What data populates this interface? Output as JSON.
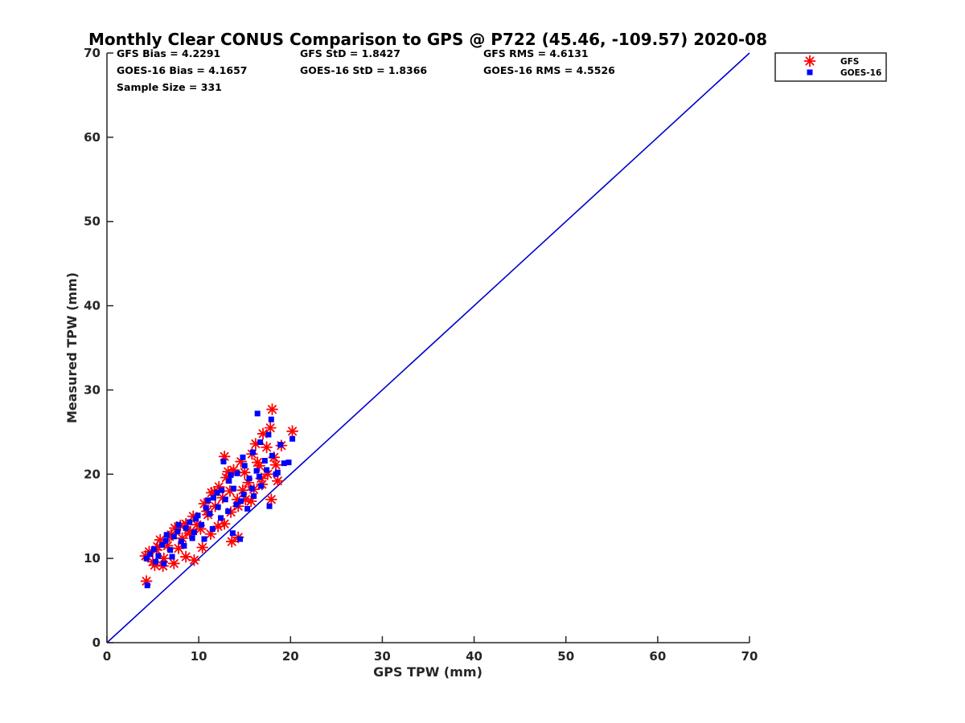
{
  "chart_data": {
    "type": "scatter",
    "title": "Monthly Clear CONUS Comparison to GPS @ P722 (45.46, -109.57) 2020-08",
    "xlabel": "GPS TPW (mm)",
    "ylabel": "Measured TPW (mm)",
    "xlim": [
      0,
      70
    ],
    "ylim": [
      0,
      70
    ],
    "xticks": [
      "0",
      "10",
      "20",
      "30",
      "40",
      "50",
      "60",
      "70"
    ],
    "yticks": [
      "0",
      "10",
      "20",
      "30",
      "40",
      "50",
      "60",
      "70"
    ],
    "grid": false,
    "legend_position": "outside-top-right",
    "stats": [
      "GFS Bias = 4.2291",
      "GFS StD = 1.8427",
      "GFS RMS = 4.6131",
      "GOES-16 Bias = 4.1657",
      "GOES-16 StD = 1.8366",
      "GOES-16 RMS = 4.5526",
      "Sample Size = 331"
    ],
    "reference_line": {
      "x": [
        0,
        70
      ],
      "y": [
        0,
        70
      ],
      "color": "#0000cc"
    },
    "series": [
      {
        "name": "GFS",
        "marker": "asterisk",
        "color": "#ff0000",
        "x": [
          4.2,
          4.6,
          5.0,
          5.4,
          5.8,
          6.2,
          6.6,
          7.0,
          7.4,
          7.8,
          8.2,
          8.6,
          9.0,
          9.4,
          9.8,
          10.2,
          10.6,
          11.0,
          11.4,
          11.8,
          12.2,
          12.6,
          13.0,
          13.4,
          13.8,
          14.2,
          14.6,
          15.0,
          15.4,
          15.8,
          16.2,
          16.6,
          17.0,
          17.4,
          17.8,
          18.2,
          18.6,
          19.0,
          20.2,
          4.3,
          5.2,
          6.1,
          7.3,
          8.6,
          9.5,
          10.4,
          11.3,
          12.1,
          12.8,
          13.5,
          14.3,
          15.1,
          16.0,
          16.8,
          17.5,
          18.0,
          12.8,
          13.6,
          14.3,
          15.7,
          16.9,
          17.9,
          18.4,
          5.5,
          6.8,
          8.0,
          9.1,
          10.9,
          11.7,
          13.2,
          14.8,
          16.4
        ],
        "y": [
          10.3,
          10.8,
          9.6,
          11.0,
          12.2,
          10.0,
          11.5,
          12.8,
          13.6,
          11.2,
          12.4,
          14.1,
          13.0,
          15.0,
          14.0,
          13.5,
          16.5,
          15.2,
          17.8,
          16.2,
          18.5,
          17.2,
          19.6,
          18.0,
          20.5,
          17.0,
          21.5,
          20.2,
          19.0,
          22.4,
          23.6,
          21.0,
          24.8,
          23.2,
          25.5,
          22.0,
          19.2,
          23.4,
          25.1,
          7.3,
          9.2,
          9.1,
          9.4,
          10.2,
          9.8,
          11.3,
          12.9,
          13.8,
          14.1,
          15.5,
          16.2,
          17.0,
          18.2,
          19.5,
          20.0,
          27.7,
          22.1,
          12.0,
          12.5,
          16.8,
          18.8,
          17.0,
          21.1,
          11.4,
          12.6,
          13.9,
          13.2,
          15.6,
          17.9,
          20.3,
          18.1,
          21.4
        ]
      },
      {
        "name": "GOES-16",
        "marker": "square",
        "color": "#0000ff",
        "x": [
          4.3,
          4.7,
          5.1,
          5.6,
          6.0,
          6.4,
          6.9,
          7.3,
          7.7,
          8.1,
          8.6,
          9.0,
          9.5,
          9.9,
          10.3,
          10.8,
          11.2,
          11.6,
          12.1,
          12.5,
          12.9,
          13.3,
          13.8,
          14.2,
          14.6,
          15.0,
          15.5,
          15.9,
          16.3,
          16.7,
          17.2,
          17.6,
          18.0,
          18.4,
          18.9,
          19.3,
          19.8,
          20.2,
          4.4,
          5.3,
          6.2,
          7.1,
          8.4,
          9.3,
          10.6,
          11.5,
          12.4,
          13.2,
          14.1,
          14.9,
          15.8,
          16.6,
          17.4,
          16.4,
          17.9,
          12.7,
          13.7,
          14.5,
          15.3,
          16.0,
          16.8,
          17.7,
          18.6,
          6.5,
          7.8,
          9.7,
          11.0,
          12.0,
          13.5,
          14.8
        ],
        "y": [
          10.0,
          10.5,
          11.1,
          10.3,
          11.6,
          12.1,
          11.0,
          12.6,
          13.2,
          12.0,
          13.6,
          14.3,
          13.1,
          15.1,
          14.0,
          16.0,
          15.3,
          17.2,
          16.1,
          18.1,
          17.0,
          19.2,
          18.3,
          20.1,
          16.8,
          21.0,
          19.5,
          22.6,
          20.4,
          23.8,
          21.6,
          24.7,
          22.2,
          20.0,
          23.5,
          21.3,
          21.4,
          24.2,
          6.8,
          9.6,
          9.4,
          10.2,
          11.5,
          12.4,
          12.3,
          13.5,
          14.8,
          15.6,
          16.4,
          17.6,
          18.3,
          19.7,
          20.5,
          27.2,
          26.5,
          21.5,
          13.0,
          12.3,
          15.9,
          17.4,
          18.6,
          16.2,
          20.2,
          12.8,
          14.0,
          14.7,
          16.9,
          17.8,
          19.9,
          22.0
        ]
      }
    ]
  }
}
